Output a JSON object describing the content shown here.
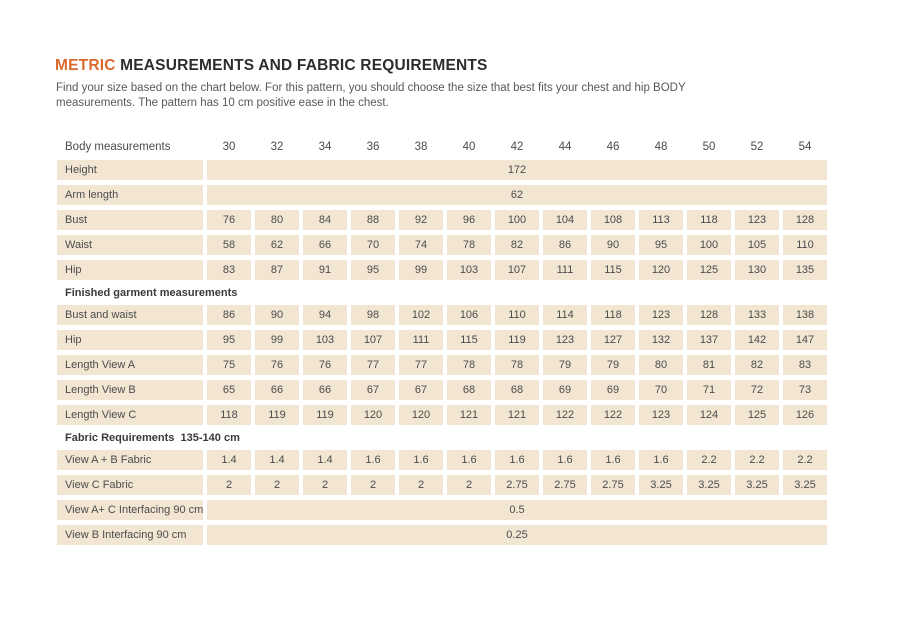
{
  "colors": {
    "accent": "#d9692f",
    "cell_bg": "#f2e6d3",
    "title_text": "#2d2d2d",
    "body_text": "#4c4c4c"
  },
  "header": {
    "title_accent": "METRIC",
    "title_rest": " MEASUREMENTS AND FABRIC REQUIREMENTS",
    "subtitle_line1": "Find your size based on the chart below. For this pattern, you should choose the size that best fits your chest and hip BODY",
    "subtitle_line2": "measurements. The pattern has 10 cm positive ease in the chest."
  },
  "table": {
    "corner_label": "Body measurements",
    "sizes": [
      "30",
      "32",
      "34",
      "36",
      "38",
      "40",
      "42",
      "44",
      "46",
      "48",
      "50",
      "52",
      "54"
    ],
    "items": [
      {
        "type": "row",
        "label": "Height",
        "span": "172"
      },
      {
        "type": "row",
        "label": "Arm length",
        "span": "62"
      },
      {
        "type": "row",
        "label": "Bust",
        "values": [
          "76",
          "80",
          "84",
          "88",
          "92",
          "96",
          "100",
          "104",
          "108",
          "113",
          "118",
          "123",
          "128"
        ]
      },
      {
        "type": "row",
        "label": "Waist",
        "values": [
          "58",
          "62",
          "66",
          "70",
          "74",
          "78",
          "82",
          "86",
          "90",
          "95",
          "100",
          "105",
          "110"
        ]
      },
      {
        "type": "row",
        "label": "Hip",
        "values": [
          "83",
          "87",
          "91",
          "95",
          "99",
          "103",
          "107",
          "111",
          "115",
          "120",
          "125",
          "130",
          "135"
        ]
      },
      {
        "type": "section",
        "label": "Finished garment measurements"
      },
      {
        "type": "row",
        "label": "Bust and waist",
        "values": [
          "86",
          "90",
          "94",
          "98",
          "102",
          "106",
          "110",
          "114",
          "118",
          "123",
          "128",
          "133",
          "138"
        ]
      },
      {
        "type": "row",
        "label": "Hip",
        "values": [
          "95",
          "99",
          "103",
          "107",
          "111",
          "115",
          "119",
          "123",
          "127",
          "132",
          "137",
          "142",
          "147"
        ]
      },
      {
        "type": "row",
        "label": "Length View A",
        "values": [
          "75",
          "76",
          "76",
          "77",
          "77",
          "78",
          "78",
          "79",
          "79",
          "80",
          "81",
          "82",
          "83"
        ]
      },
      {
        "type": "row",
        "label": "Length View B",
        "values": [
          "65",
          "66",
          "66",
          "67",
          "67",
          "68",
          "68",
          "69",
          "69",
          "70",
          "71",
          "72",
          "73"
        ]
      },
      {
        "type": "row",
        "label": "Length View C",
        "values": [
          "118",
          "119",
          "119",
          "120",
          "120",
          "121",
          "121",
          "122",
          "122",
          "123",
          "124",
          "125",
          "126"
        ]
      },
      {
        "type": "section",
        "label": "Fabric Requirements  135-140 cm"
      },
      {
        "type": "row",
        "label": "View A + B Fabric",
        "values": [
          "1.4",
          "1.4",
          "1.4",
          "1.6",
          "1.6",
          "1.6",
          "1.6",
          "1.6",
          "1.6",
          "1.6",
          "2.2",
          "2.2",
          "2.2"
        ]
      },
      {
        "type": "row",
        "label": "View C Fabric",
        "values": [
          "2",
          "2",
          "2",
          "2",
          "2",
          "2",
          "2.75",
          "2.75",
          "2.75",
          "3.25",
          "3.25",
          "3.25",
          "3.25"
        ]
      },
      {
        "type": "row",
        "label": "View A+ C Interfacing 90 cm",
        "span": "0.5"
      },
      {
        "type": "row",
        "label": "View B Interfacing 90 cm",
        "span": "0.25"
      }
    ]
  }
}
